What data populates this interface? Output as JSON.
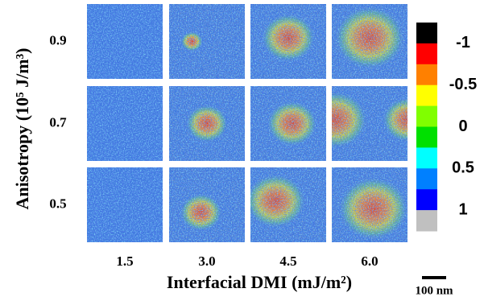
{
  "figure": {
    "y_label": "Anisotropy (10⁵ J/m³)",
    "x_label": "Interfacial DMI (mJ/m²)",
    "row_labels": [
      "0.9",
      "0.7",
      "0.5"
    ],
    "column_labels": [
      "1.5",
      "3.0",
      "4.5",
      "6.0"
    ],
    "colorbar": {
      "colors": [
        "#000000",
        "#ff0000",
        "#ff8000",
        "#ffff00",
        "#80ff00",
        "#00e000",
        "#00ffff",
        "#0080ff",
        "#0000ff",
        "#c0c0c0"
      ],
      "labels": [
        "-1",
        "-0.5",
        "0",
        "0.5",
        "1"
      ]
    },
    "scale_bar": "100 nm"
  }
}
